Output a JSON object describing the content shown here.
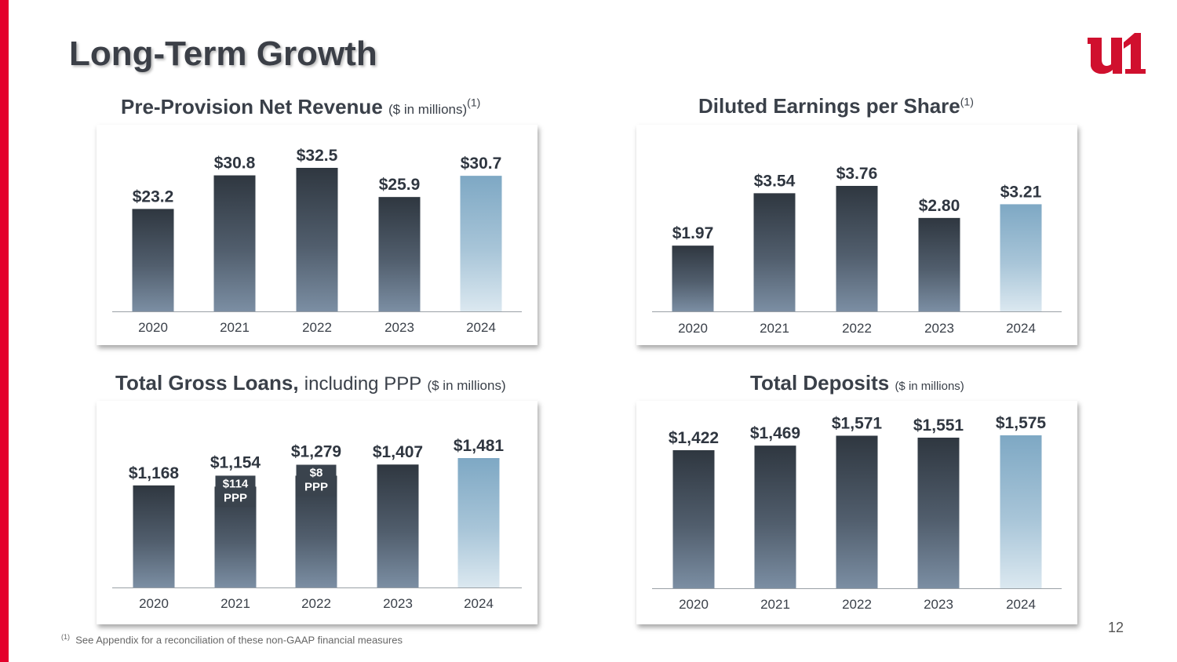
{
  "page": {
    "title": "Long-Term Growth",
    "page_number": "12",
    "footnote_marker": "(1)",
    "footnote": "See Appendix for a reconciliation of these non-GAAP financial measures",
    "accent_color": "#e4002b",
    "logo": "u1-logo"
  },
  "titles": {
    "ppnr_main": "Pre-Provision Net Revenue",
    "ppnr_note": "($ in millions)",
    "ppnr_sup": "(1)",
    "eps_main": "Diluted Earnings per Share",
    "eps_sup": "(1)",
    "loans_main": "Total Gross Loans,",
    "loans_normal": "including PPP",
    "loans_note": "($ in millions)",
    "deposits_main": "Total Deposits",
    "deposits_note": "($ in millions)"
  },
  "chart_data": [
    {
      "id": "ppnr",
      "type": "bar",
      "categories": [
        "2020",
        "2021",
        "2022",
        "2023",
        "2024"
      ],
      "values": [
        23.2,
        30.8,
        32.5,
        25.9,
        30.7
      ],
      "labels": [
        "$23.2",
        "$30.8",
        "$32.5",
        "$25.9",
        "$30.7"
      ],
      "highlight_index": 4
    },
    {
      "id": "eps",
      "type": "bar",
      "categories": [
        "2020",
        "2021",
        "2022",
        "2023",
        "2024"
      ],
      "values": [
        1.97,
        3.54,
        3.76,
        2.8,
        3.21
      ],
      "labels": [
        "$1.97",
        "$3.54",
        "$3.76",
        "$2.80",
        "$3.21"
      ],
      "highlight_index": 4
    },
    {
      "id": "loans",
      "type": "bar",
      "categories": [
        "2020",
        "2021",
        "2022",
        "2023",
        "2024"
      ],
      "values": [
        1168,
        1154,
        1279,
        1407,
        1481
      ],
      "labels": [
        "$1,168",
        "$1,154",
        "$1,279",
        "$1,407",
        "$1,481"
      ],
      "highlight_index": 4,
      "segments": [
        null,
        {
          "amount": "$114",
          "label": "PPP",
          "value": 114
        },
        {
          "amount": "$8",
          "label": "PPP",
          "value": 8
        },
        null,
        null
      ]
    },
    {
      "id": "deposits",
      "type": "bar",
      "categories": [
        "2020",
        "2021",
        "2022",
        "2023",
        "2024"
      ],
      "values": [
        1422,
        1469,
        1571,
        1551,
        1575
      ],
      "labels": [
        "$1,422",
        "$1,469",
        "$1,571",
        "$1,551",
        "$1,575"
      ],
      "highlight_index": 4
    }
  ]
}
